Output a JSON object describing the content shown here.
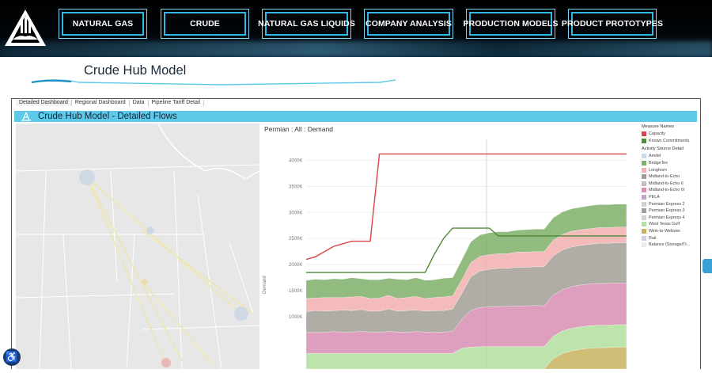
{
  "nav": {
    "items": [
      {
        "label": "NATURAL GAS"
      },
      {
        "label": "CRUDE"
      },
      {
        "label": "NATURAL GAS LIQUIDS"
      },
      {
        "label": "COMPANY ANALYSIS"
      },
      {
        "label": "PRODUCTION MODELS"
      },
      {
        "label": "PRODUCT PROTOTYPES"
      }
    ]
  },
  "page": {
    "title": "Crude Hub Model"
  },
  "dashboard": {
    "tabs": [
      {
        "label": "Detailed Dashboard",
        "active": true
      },
      {
        "label": "Regional Dashboard"
      },
      {
        "label": "Data"
      },
      {
        "label": "Pipeline Tariff Detail"
      }
    ],
    "banner_title": "Crude Hub Model - Detailed Flows",
    "chart_title": "Permian : All : Demand"
  },
  "legend": {
    "measure_header": "Measure Names",
    "measures": [
      {
        "label": "Capacity",
        "color": "#d9434a"
      },
      {
        "label": "Known Commitments",
        "color": "#4f8a36"
      }
    ],
    "activity_header": "Activity Source Detail",
    "activities": [
      {
        "label": "Amdel",
        "color": "#c8dcef"
      },
      {
        "label": "BridgeTex",
        "color": "#7fb06a"
      },
      {
        "label": "Longhorn",
        "color": "#f2b0ae"
      },
      {
        "label": "Midland-to-Echo",
        "color": "#a69a9b"
      },
      {
        "label": "Midland-to-Echo II",
        "color": "#c9bcbe"
      },
      {
        "label": "Midland-to-Echo III",
        "color": "#d98fb3"
      },
      {
        "label": "PELA",
        "color": "#c2a3cc"
      },
      {
        "label": "Permian Express 2",
        "color": "#d5d0cc"
      },
      {
        "label": "Permian Express 3",
        "color": "#a39f97"
      },
      {
        "label": "Permian Express 4",
        "color": "#d6d3ce"
      },
      {
        "label": "West Texas Gulf",
        "color": "#b3e09f"
      },
      {
        "label": "Wink-to-Webster",
        "color": "#c9b35f"
      },
      {
        "label": "Rail",
        "color": "#d8cbe6"
      },
      {
        "label": "Balance (Storage/Tr...",
        "color": "#eceaea"
      }
    ]
  },
  "chart_data": {
    "type": "area",
    "title": "Permian : All : Demand",
    "ylabel": "Demand",
    "ylim": [
      0,
      4400000
    ],
    "yticks": [
      "1000K",
      "1500K",
      "2000K",
      "2500K",
      "3000K",
      "3500K",
      "4000K"
    ],
    "x": [
      0,
      1,
      2,
      3,
      4,
      5,
      6,
      7,
      8,
      9,
      10,
      11,
      12,
      13,
      14,
      15,
      16,
      17,
      18,
      19,
      20,
      21,
      22,
      23,
      24,
      25,
      26,
      27,
      28,
      29,
      30,
      31,
      32,
      33,
      34,
      35
    ],
    "series": [
      {
        "name": "Wink-to-Webster",
        "values": [
          0,
          0,
          0,
          0,
          0,
          0,
          0,
          0,
          0,
          0,
          0,
          0,
          0,
          0,
          0,
          0,
          0,
          0,
          0,
          0,
          0,
          0,
          0,
          0,
          0,
          0,
          0,
          200000,
          300000,
          350000,
          380000,
          400000,
          410000,
          410000,
          420000,
          420000
        ]
      },
      {
        "name": "West Texas Gulf",
        "values": [
          300000,
          300000,
          300000,
          300000,
          300000,
          300000,
          300000,
          300000,
          300000,
          300000,
          300000,
          300000,
          300000,
          300000,
          300000,
          300000,
          300000,
          400000,
          420000,
          430000,
          430000,
          430000,
          430000,
          430000,
          430000,
          430000,
          430000,
          430000,
          430000,
          430000,
          430000,
          430000,
          430000,
          430000,
          430000,
          430000
        ]
      },
      {
        "name": "Midland-to-Echo III",
        "values": [
          400000,
          400000,
          400000,
          420000,
          400000,
          410000,
          420000,
          410000,
          400000,
          420000,
          410000,
          400000,
          420000,
          410000,
          400000,
          410000,
          420000,
          550000,
          700000,
          750000,
          760000,
          770000,
          770000,
          780000,
          780000,
          790000,
          780000,
          790000,
          790000,
          800000,
          800000,
          800000,
          800000,
          800000,
          800000,
          800000
        ]
      },
      {
        "name": "Permian Express 3",
        "values": [
          400000,
          420000,
          410000,
          400000,
          430000,
          410000,
          420000,
          400000,
          410000,
          430000,
          400000,
          420000,
          410000,
          400000,
          420000,
          410000,
          430000,
          500000,
          650000,
          700000,
          720000,
          730000,
          730000,
          740000,
          740000,
          740000,
          750000,
          750000,
          760000,
          760000,
          760000,
          760000,
          770000,
          770000,
          770000,
          770000
        ]
      },
      {
        "name": "Longhorn",
        "values": [
          250000,
          240000,
          260000,
          250000,
          240000,
          260000,
          250000,
          240000,
          250000,
          260000,
          240000,
          250000,
          260000,
          240000,
          250000,
          260000,
          250000,
          260000,
          270000,
          280000,
          280000,
          280000,
          280000,
          290000,
          290000,
          290000,
          290000,
          300000,
          300000,
          300000,
          300000,
          300000,
          300000,
          300000,
          300000,
          300000
        ]
      },
      {
        "name": "BridgeTex",
        "values": [
          350000,
          360000,
          340000,
          360000,
          350000,
          370000,
          340000,
          360000,
          350000,
          330000,
          370000,
          340000,
          360000,
          350000,
          340000,
          360000,
          350000,
          380000,
          400000,
          410000,
          420000,
          420000,
          420000,
          420000,
          430000,
          430000,
          430000,
          430000,
          430000,
          430000,
          430000,
          440000,
          440000,
          440000,
          440000,
          440000
        ]
      }
    ],
    "capacity": [
      2100000,
      2150000,
      2250000,
      2350000,
      2400000,
      2450000,
      2450000,
      2450000,
      4120000,
      4120000,
      4120000,
      4120000,
      4120000,
      4120000,
      4120000,
      4120000,
      4120000,
      4120000,
      4120000,
      4120000,
      4120000,
      4120000,
      4120000,
      4120000,
      4120000,
      4120000,
      4120000,
      4120000,
      4120000,
      4120000,
      4120000,
      4120000,
      4120000,
      4120000,
      4120000,
      4120000
    ],
    "known_commitments": [
      1850000,
      1850000,
      1850000,
      1850000,
      1850000,
      1850000,
      1850000,
      1850000,
      1850000,
      1850000,
      1850000,
      1850000,
      1850000,
      1850000,
      2200000,
      2500000,
      2700000,
      2700000,
      2700000,
      2700000,
      2700000,
      2550000,
      2550000,
      2550000,
      2550000,
      2550000,
      2550000,
      2550000,
      2550000,
      2550000,
      2550000,
      2550000,
      2550000,
      2550000,
      2550000,
      2550000
    ]
  }
}
